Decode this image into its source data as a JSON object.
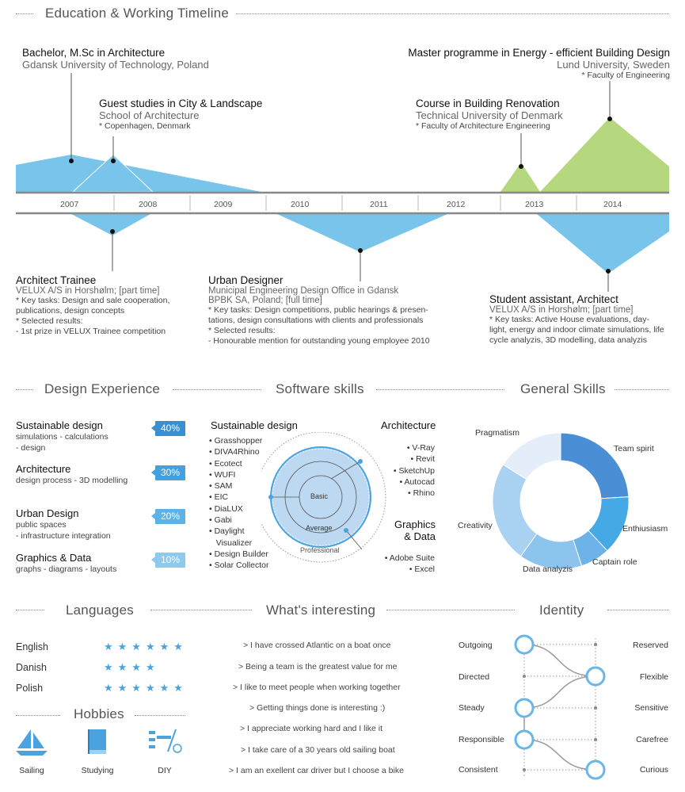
{
  "timeline": {
    "title": "Education & Working Timeline",
    "years": [
      "2007",
      "2008",
      "2009",
      "2010",
      "2011",
      "2012",
      "2013",
      "2014"
    ],
    "education": [
      {
        "title": "Bachelor, M.Sc in Architecture",
        "place": "Gdansk University of Technology, Poland",
        "note": ""
      },
      {
        "title": "Guest studies in City & Landscape",
        "place": "School of Architecture",
        "note": "* Copenhagen, Denmark"
      },
      {
        "title": "Course in Building Renovation",
        "place": "Technical University of Denmark",
        "note": "* Faculty of Architecture Engineering"
      },
      {
        "title": "Master programme in Energy - efficient Building Design",
        "place": "Lund University, Sweden",
        "note": "* Faculty of Engineering"
      }
    ],
    "work": [
      {
        "title": "Architect Trainee",
        "place": "VELUX A/S in Horshølm; [part time]",
        "lines": [
          "* Key tasks: Design and sale cooperation,",
          "publications, design concepts",
          "* Selected results:",
          "- 1st prize in VELUX Trainee competition"
        ]
      },
      {
        "title": "Urban Designer",
        "place": "Municipal Engineering Design Office in Gdansk",
        "place2": "BPBK SA, Poland; [full time]",
        "lines": [
          "* Key tasks: Design competitions, public hearings & presen-",
          "tations, design consultations with clients and professionals",
          "* Selected results:",
          "- Honourable mention for outstanding young employee 2010"
        ]
      },
      {
        "title": "Student assistant, Architect",
        "place": "VELUX A/S in Horshølm; [part time]",
        "lines": [
          "* Key tasks: Active House evaluations, day-",
          "light, energy and indoor climate simulations, life",
          "cycle analyzis, 3D modelling, data analyzis"
        ]
      }
    ]
  },
  "design_experience": {
    "title": "Design Experience",
    "items": [
      {
        "title": "Sustainable design",
        "sub1": "simulations - calculations",
        "sub2": "- design",
        "percent": "40%"
      },
      {
        "title": "Architecture",
        "sub1": "design process - 3D modelling",
        "sub2": "",
        "percent": "30%"
      },
      {
        "title": "Urban Design",
        "sub1": "public spaces",
        "sub2": " - infrastructure integration",
        "percent": "20%"
      },
      {
        "title": "Graphics & Data",
        "sub1": "graphs - diagrams - layouts",
        "sub2": "",
        "percent": "10%"
      }
    ]
  },
  "software": {
    "title": "Software skills",
    "sustainable_title": "Sustainable design",
    "sustainable": [
      "Grasshopper",
      "DIVA4Rhino",
      "Ecotect",
      "WUFI",
      "SAM",
      "EIC",
      "DiaLUX",
      "Gabi",
      "Daylight",
      "Visualizer",
      "Design Builder",
      "Solar Collector"
    ],
    "architecture_title": "Architecture",
    "architecture": [
      "V-Ray",
      "Revit",
      "SketchUp",
      "Autocad",
      "Rhino"
    ],
    "graphics_title1": "Graphics",
    "graphics_title2": "& Data",
    "graphics": [
      "Adobe Suite",
      "Excel"
    ],
    "levels": [
      "Basic",
      "Average",
      "Professional"
    ]
  },
  "general_skills": {
    "title": "General Skills",
    "segments": [
      {
        "label": "Team spirit",
        "value": 24,
        "color": "#4a8fd6"
      },
      {
        "label": "Enthiusiasm",
        "value": 14,
        "color": "#45a9e5"
      },
      {
        "label": "Captain role",
        "value": 7,
        "color": "#6db3e8"
      },
      {
        "label": "Data analyzis",
        "value": 15,
        "color": "#8cc4ee"
      },
      {
        "label": "Creativity",
        "value": 24,
        "color": "#a9d1f2"
      },
      {
        "label": "Pragmatism",
        "value": 16,
        "color": "#e3eefa"
      }
    ]
  },
  "languages": {
    "title": "Languages",
    "items": [
      {
        "name": "English",
        "stars": "★★★★★★",
        "rating": 5.5
      },
      {
        "name": "Danish",
        "stars": "★★★★",
        "rating": 4
      },
      {
        "name": "Polish",
        "stars": "★★★★★★",
        "rating": 6
      }
    ]
  },
  "hobbies": {
    "title": "Hobbies",
    "items": [
      {
        "label": "Sailing",
        "icon": "sailboat-icon"
      },
      {
        "label": "Studying",
        "icon": "book-icon"
      },
      {
        "label": "DIY",
        "icon": "tools-icon"
      }
    ]
  },
  "interesting": {
    "title": "What's interesting",
    "items": [
      ">   I have crossed Atlantic on a boat once",
      ">   Being a team is the greatest value for me",
      ">   I like to meet people when working together",
      ">   Getting things done is interesting :)",
      ">   I appreciate working hard and I like it",
      ">   I take care of a 30 years old sailing boat",
      ">   I am an exellent car driver but I choose a bike"
    ]
  },
  "identity": {
    "title": "Identity",
    "rows": [
      {
        "left": "Outgoing",
        "right": "Reserved",
        "side": "left"
      },
      {
        "left": "Directed",
        "right": "Flexible",
        "side": "right"
      },
      {
        "left": "Steady",
        "right": "Sensitive",
        "side": "left"
      },
      {
        "left": "Responsible",
        "right": "Carefree",
        "side": "left"
      },
      {
        "left": "Consistent",
        "right": "Curious",
        "side": "right"
      }
    ]
  },
  "colors": {
    "blue": "#79c4ea",
    "green": "#b5d77e",
    "axis": "#888888",
    "accent": "#4aa3df"
  }
}
